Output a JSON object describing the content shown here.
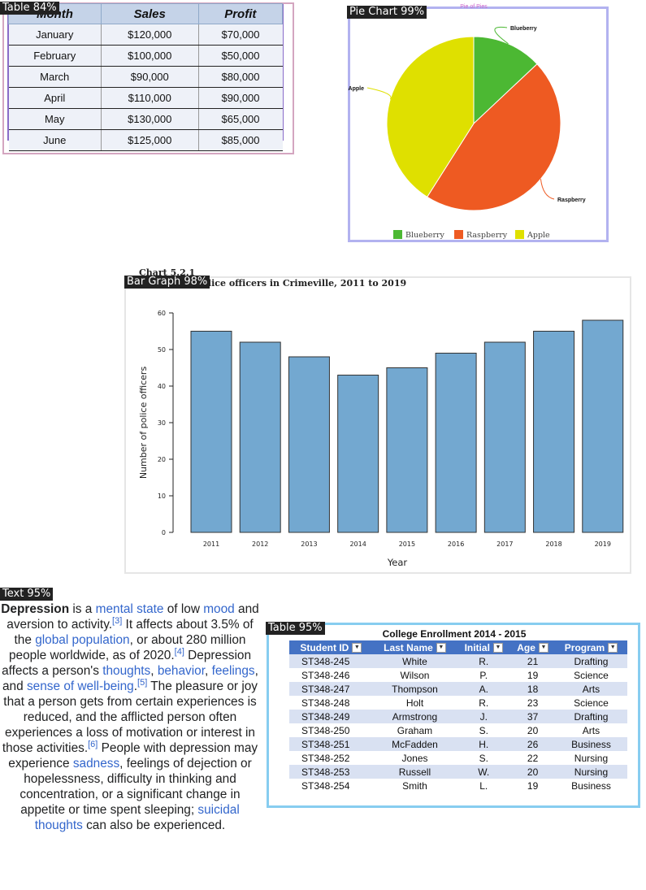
{
  "detections": {
    "table1": "Table 84%",
    "pie": "Pie Chart 99%",
    "bar": "Bar Graph 98%",
    "text": "Text 95%",
    "table2": "Table 95%"
  },
  "sales_table": {
    "headers": [
      "Month",
      "Sales",
      "Profit"
    ],
    "rows": [
      [
        "January",
        "$120,000",
        "$70,000"
      ],
      [
        "February",
        "$100,000",
        "$50,000"
      ],
      [
        "March",
        "$90,000",
        "$80,000"
      ],
      [
        "April",
        "$110,000",
        "$90,000"
      ],
      [
        "May",
        "$130,000",
        "$65,000"
      ],
      [
        "June",
        "$125,000",
        "$85,000"
      ]
    ]
  },
  "chart_data": [
    {
      "type": "pie",
      "title": "Pie of Pies",
      "labels": [
        "Blueberry",
        "Raspberry",
        "Apple"
      ],
      "values": [
        13,
        46,
        41
      ],
      "colors": [
        "#4cb833",
        "#ee5a22",
        "#dfe000"
      ],
      "legend": "bottom"
    },
    {
      "type": "bar",
      "title_line1": "Chart 5.2.1",
      "title_line2": "Number of police officers in Crimeville, 2011 to 2019",
      "categories": [
        "2011",
        "2012",
        "2013",
        "2014",
        "2015",
        "2016",
        "2017",
        "2018",
        "2019"
      ],
      "values": [
        55,
        52,
        48,
        43,
        45,
        49,
        52,
        55,
        58
      ],
      "xlabel": "Year",
      "ylabel": "Number of police officers",
      "ylim": [
        0,
        60
      ],
      "yticks": [
        0,
        10,
        20,
        30,
        40,
        50,
        60
      ],
      "bar_color": "#73a8d0"
    }
  ],
  "text": {
    "p1": "Depression",
    "p2": " is a ",
    "l1": "mental state",
    "p3": " of low ",
    "l2": "mood",
    "p4": " and aversion to activity.",
    "r3": "[3]",
    "p5": " It affects about 3.5% of the ",
    "l3": "global population",
    "p6": ", or about 280 million people worldwide, as of 2020.",
    "r4": "[4]",
    "p7": " Depression affects a person's ",
    "l4": "thoughts",
    "p8": ", ",
    "l5": "behavior",
    "p9": ", ",
    "l6": "feelings",
    "p10": ", and ",
    "l7": "sense of well-being",
    "p11": ".",
    "r5": "[5]",
    "p12": " The pleasure or joy that a person gets from certain experiences is reduced, and the afflicted person often experiences a loss of motivation or interest in those activities.",
    "r6": "[6]",
    "p13": " People with depression may experience ",
    "l8": "sadness",
    "p14": ", feelings of dejection or hopelessness, difficulty in thinking and concentration, or a significant change in appetite or time spent sleeping; ",
    "l9": "suicidal thoughts",
    "p15": " can also be experienced."
  },
  "enrollment": {
    "title": "College Enrollment 2014 - 2015",
    "headers": [
      "Student ID",
      "Last Name",
      "Initial",
      "Age",
      "Program"
    ],
    "rows": [
      [
        "ST348-245",
        "White",
        "R.",
        "21",
        "Drafting"
      ],
      [
        "ST348-246",
        "Wilson",
        "P.",
        "19",
        "Science"
      ],
      [
        "ST348-247",
        "Thompson",
        "A.",
        "18",
        "Arts"
      ],
      [
        "ST348-248",
        "Holt",
        "R.",
        "23",
        "Science"
      ],
      [
        "ST348-249",
        "Armstrong",
        "J.",
        "37",
        "Drafting"
      ],
      [
        "ST348-250",
        "Graham",
        "S.",
        "20",
        "Arts"
      ],
      [
        "ST348-251",
        "McFadden",
        "H.",
        "26",
        "Business"
      ],
      [
        "ST348-252",
        "Jones",
        "S.",
        "22",
        "Nursing"
      ],
      [
        "ST348-253",
        "Russell",
        "W.",
        "20",
        "Nursing"
      ],
      [
        "ST348-254",
        "Smith",
        "L.",
        "19",
        "Business"
      ]
    ]
  }
}
